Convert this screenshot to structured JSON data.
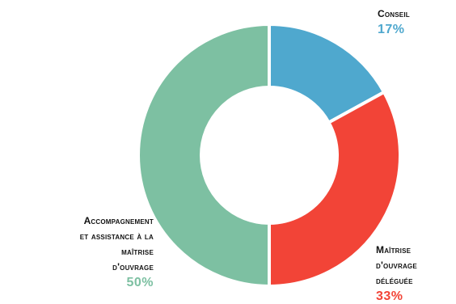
{
  "chart_data": {
    "type": "pie",
    "title": "",
    "slices": [
      {
        "label": "Conseil",
        "display": "Conseil",
        "value": 17,
        "pct_text": "17%",
        "color": "#4fa8ce"
      },
      {
        "label": "Maîtrise d'ouvrage déléguée",
        "display": "Maîtrise\nd'ouvrage\ndéléguée",
        "value": 33,
        "pct_text": "33%",
        "color": "#f24437"
      },
      {
        "label": "Accompagnement et assistance à la maîtrise d'ouvrage",
        "display": "Accompagnement\net assistance à la\nmaîtrise\nd'ouvrage",
        "value": 50,
        "pct_text": "50%",
        "color": "#7dc0a2"
      }
    ],
    "legend": "none"
  }
}
